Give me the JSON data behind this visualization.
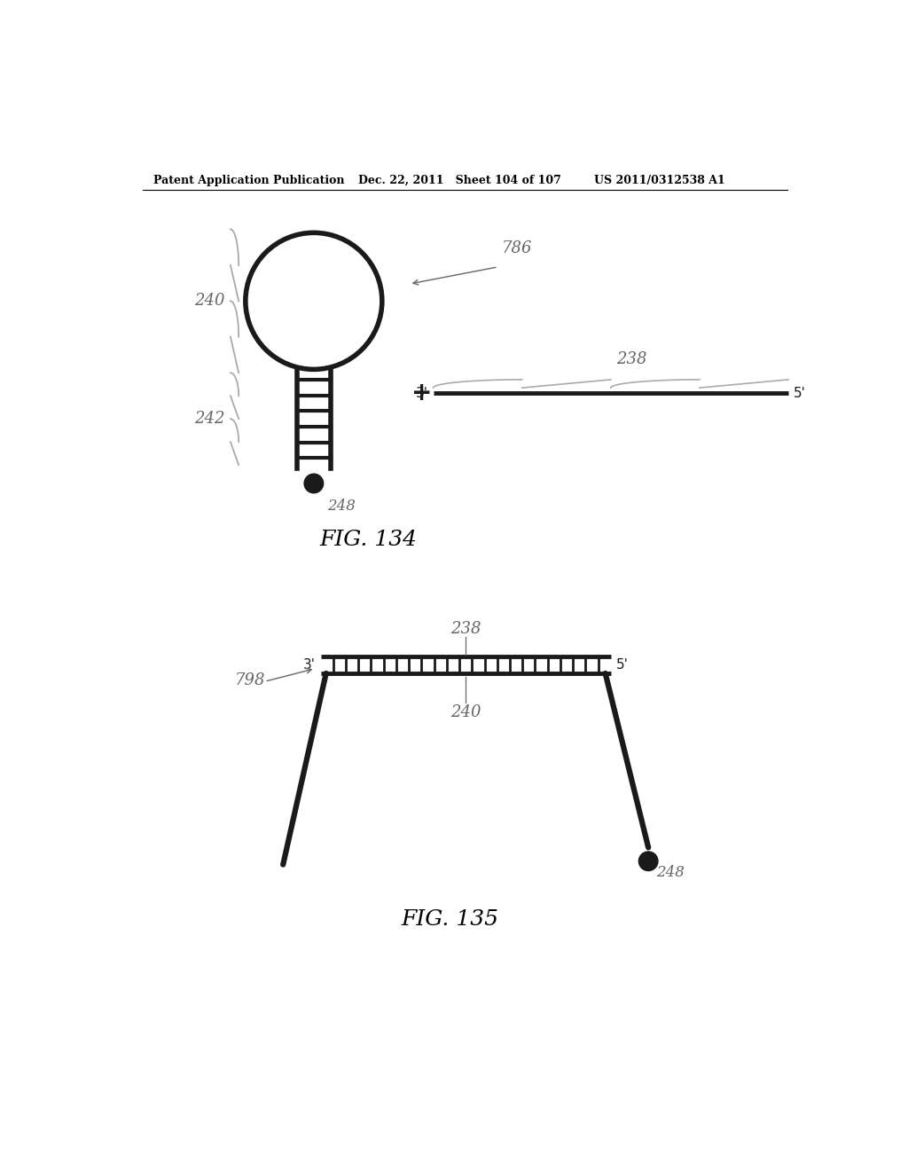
{
  "header_left": "Patent Application Publication",
  "header_mid": "Dec. 22, 2011   Sheet 104 of 107",
  "header_right": "US 2011/0312538 A1",
  "fig134_label": "FIG. 134",
  "fig135_label": "FIG. 135",
  "bg_color": "#ffffff",
  "line_color": "#1a1a1a",
  "label_color": "#666666"
}
